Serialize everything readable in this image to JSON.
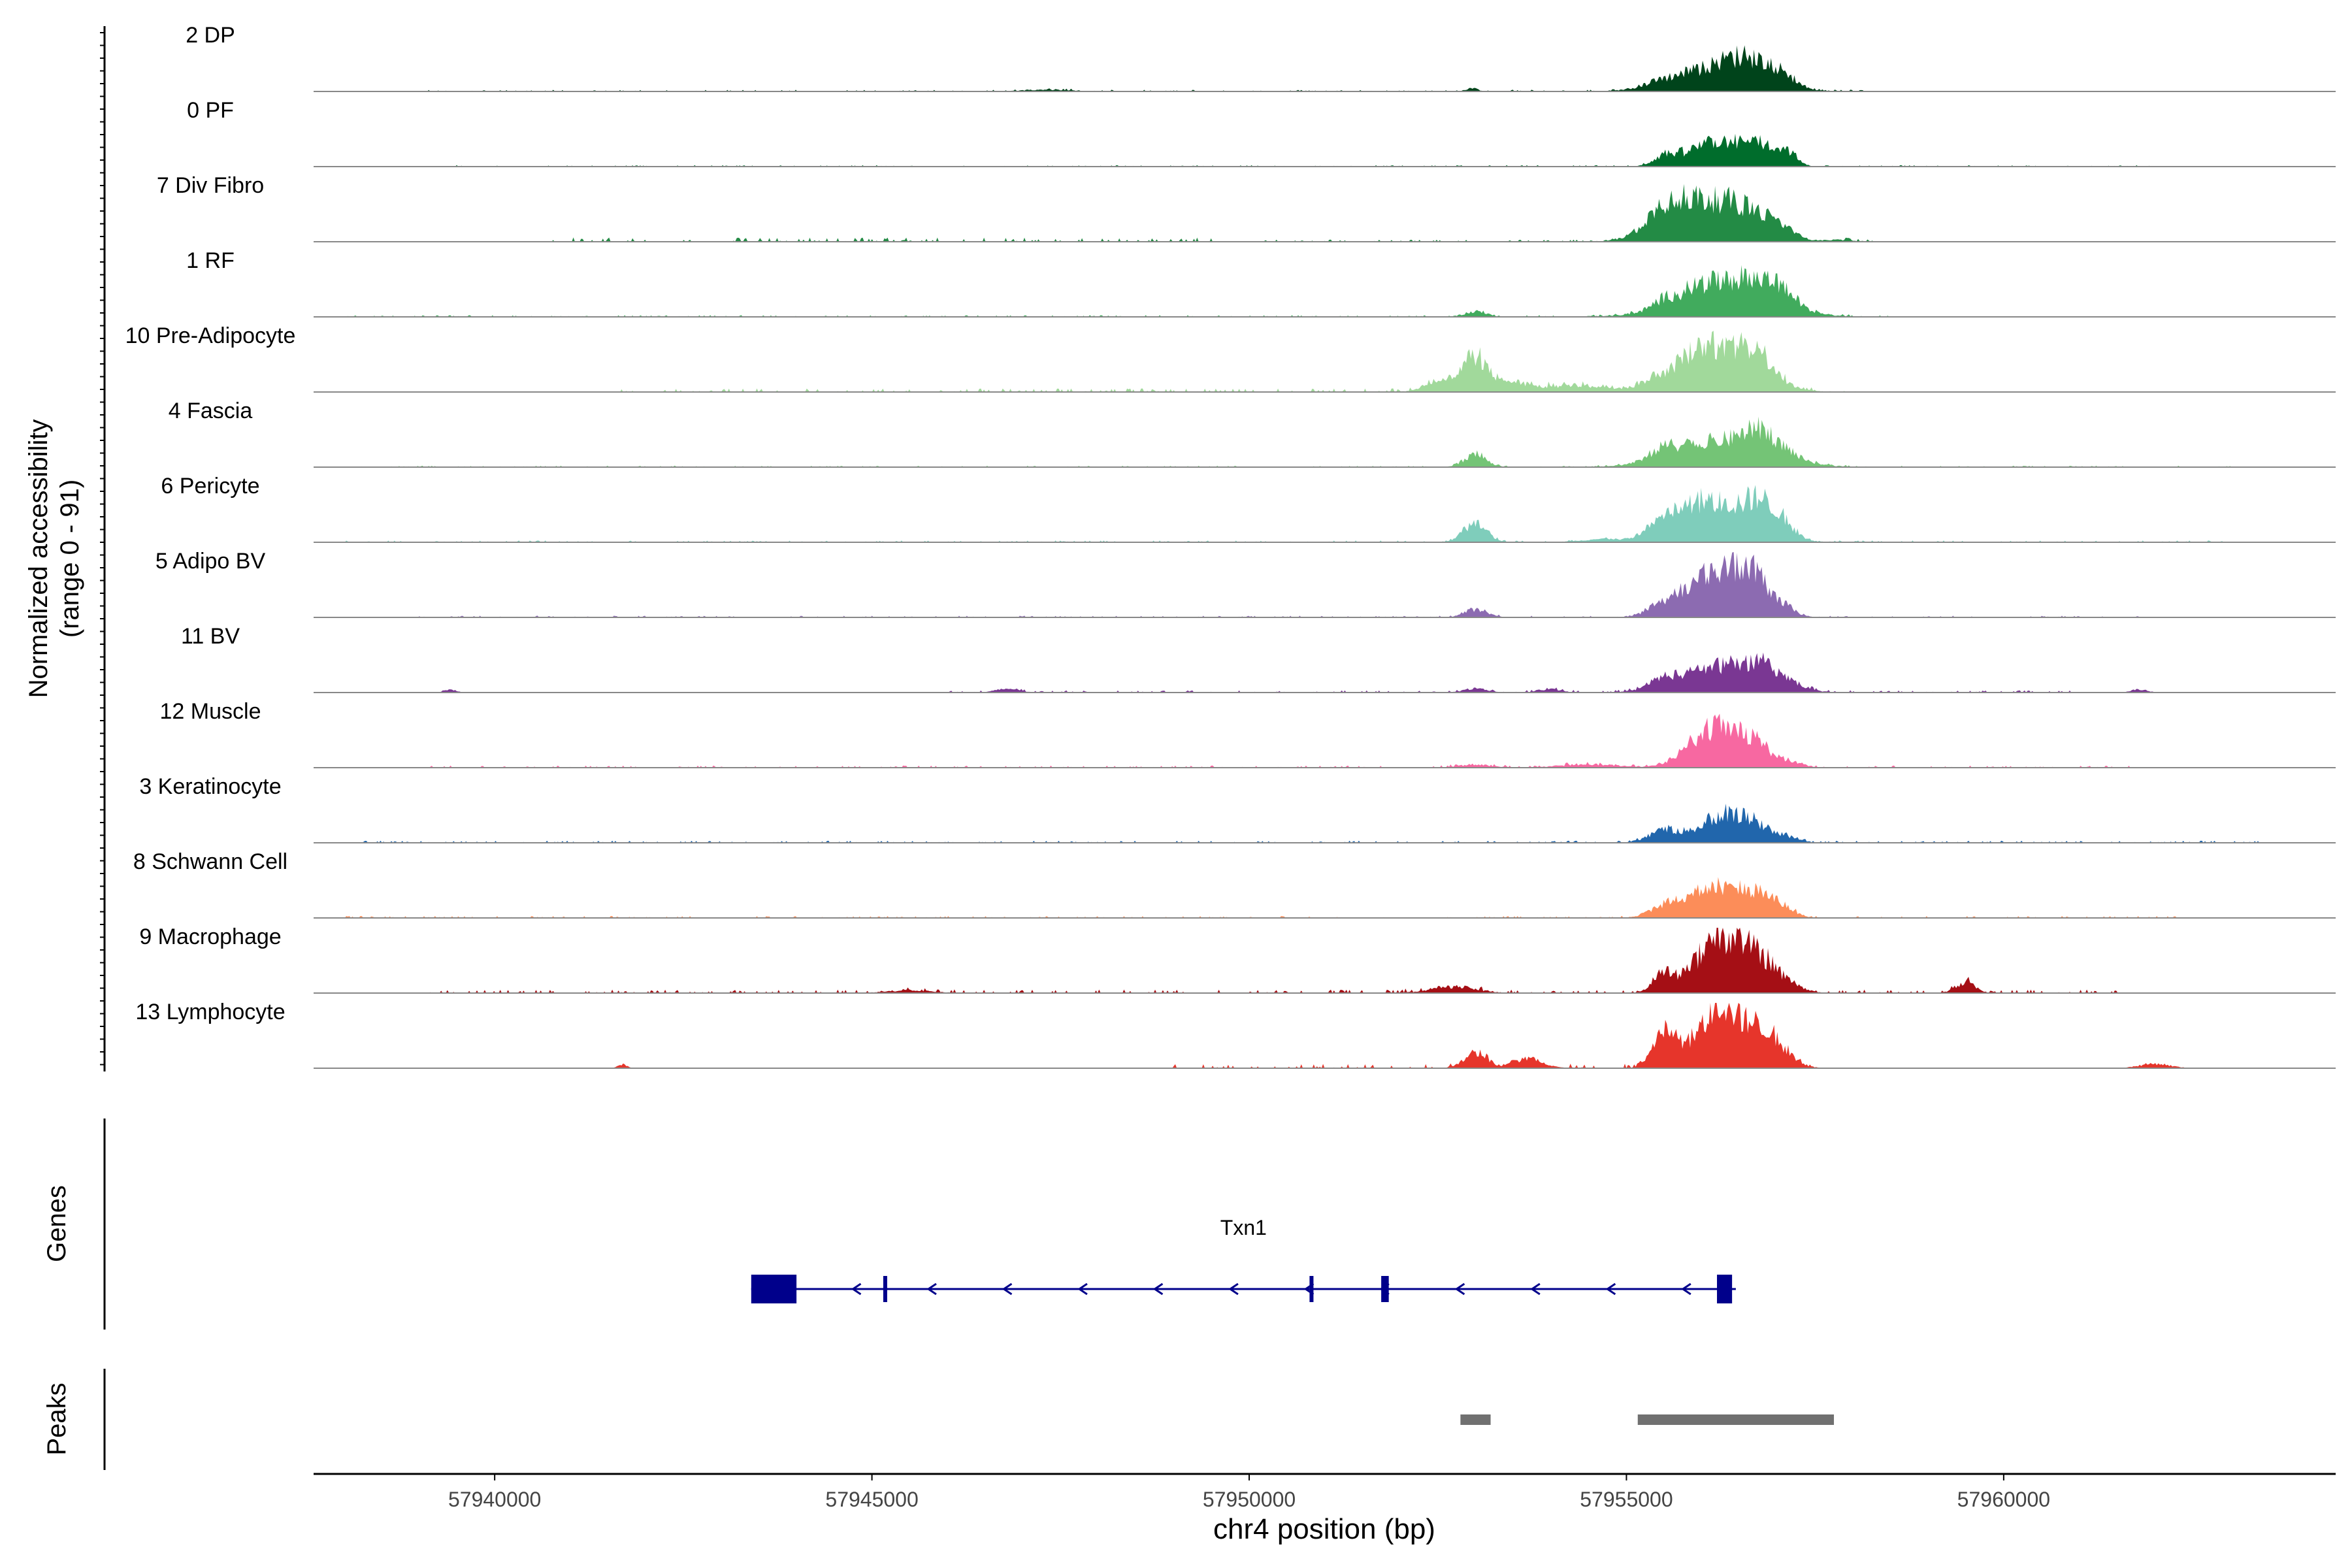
{
  "chart_data": {
    "type": "area",
    "title": "",
    "ylabel_line1": "Normalized accessibility",
    "ylabel_line2": "(range 0 - 91)",
    "ylim": [
      0,
      91
    ],
    "xlabel": "chr4 position (bp)",
    "xlim": [
      57937600,
      57964400
    ],
    "xticks": [
      57940000,
      57945000,
      57950000,
      57955000,
      57960000
    ],
    "xtick_labels": [
      "57940000",
      "57945000",
      "57950000",
      "57955000",
      "57960000"
    ],
    "tracks": [
      {
        "name": "2 DP",
        "color": "#00441b",
        "peaks": [
          [
            57956300,
            38,
            500
          ],
          [
            57956650,
            22,
            300
          ],
          [
            57957050,
            14,
            150
          ],
          [
            57955500,
            10,
            300
          ],
          [
            57952950,
            5,
            80
          ],
          [
            57947300,
            3,
            300
          ]
        ],
        "noise": [
          [
            57939000,
            57958300,
            1.2
          ]
        ]
      },
      {
        "name": "0 PF",
        "color": "#006d2c",
        "peaks": [
          [
            57956300,
            40,
            350
          ],
          [
            57956800,
            22,
            150
          ],
          [
            57957150,
            20,
            120
          ],
          [
            57955500,
            14,
            150
          ],
          [
            57955800,
            8,
            200
          ]
        ],
        "noise": [
          [
            57939000,
            57962000,
            1.0
          ]
        ]
      },
      {
        "name": "7 Div Fibro",
        "color": "#238b45",
        "peaks": [
          [
            57956000,
            60,
            450
          ],
          [
            57955500,
            30,
            250
          ],
          [
            57956650,
            30,
            300
          ],
          [
            57957050,
            12,
            200
          ],
          [
            57957800,
            3,
            200
          ]
        ],
        "noise": [
          [
            57940700,
            57949500,
            3.0
          ],
          [
            57950000,
            57958600,
            1.5
          ]
        ]
      },
      {
        "name": "1 RF",
        "color": "#41ab5d",
        "peaks": [
          [
            57956300,
            42,
            600
          ],
          [
            57956700,
            25,
            300
          ],
          [
            57957100,
            15,
            200
          ],
          [
            57955500,
            12,
            150
          ],
          [
            57955950,
            14,
            200
          ],
          [
            57953000,
            8,
            150
          ]
        ],
        "noise": [
          [
            57938000,
            57958600,
            1.2
          ]
        ]
      },
      {
        "name": "10 Pre-Adipocyte",
        "color": "#a1d99b",
        "peaks": [
          [
            57956300,
            60,
            450
          ],
          [
            57956750,
            30,
            200
          ],
          [
            57955900,
            25,
            250
          ],
          [
            57955400,
            15,
            200
          ],
          [
            57953000,
            55,
            150
          ],
          [
            57952550,
            20,
            200
          ],
          [
            57953450,
            14,
            200
          ],
          [
            57954300,
            10,
            500
          ]
        ],
        "noise": [
          [
            57941500,
            57958200,
            2.5
          ]
        ]
      },
      {
        "name": "4 Fascia",
        "color": "#74c476",
        "peaks": [
          [
            57956300,
            42,
            600
          ],
          [
            57956800,
            28,
            200
          ],
          [
            57955500,
            15,
            200
          ],
          [
            57953000,
            20,
            150
          ],
          [
            57957150,
            6,
            150
          ]
        ],
        "noise": [
          [
            57938000,
            57963000,
            1.0
          ]
        ]
      },
      {
        "name": "6 Pericyte",
        "color": "#7fcdbb",
        "peaks": [
          [
            57956300,
            55,
            450
          ],
          [
            57955500,
            30,
            200
          ],
          [
            57955950,
            20,
            200
          ],
          [
            57956800,
            35,
            200
          ],
          [
            57957100,
            15,
            150
          ],
          [
            57953000,
            32,
            150
          ],
          [
            57954700,
            5,
            300
          ]
        ],
        "noise": [
          [
            57938000,
            57963000,
            1.3
          ]
        ]
      },
      {
        "name": "5 Adipo BV",
        "color": "#8c6bb1",
        "peaks": [
          [
            57956300,
            70,
            350
          ],
          [
            57956700,
            35,
            200
          ],
          [
            57955500,
            22,
            200
          ],
          [
            57955950,
            18,
            200
          ],
          [
            57957100,
            12,
            150
          ],
          [
            57953000,
            12,
            150
          ]
        ],
        "noise": [
          [
            57939000,
            57962000,
            1.2
          ]
        ]
      },
      {
        "name": "11 BV",
        "color": "#7a3793",
        "peaks": [
          [
            57956300,
            42,
            500
          ],
          [
            57956800,
            20,
            200
          ],
          [
            57955500,
            14,
            200
          ],
          [
            57957150,
            8,
            200
          ],
          [
            57953000,
            6,
            150
          ],
          [
            57954000,
            5,
            150
          ],
          [
            57946800,
            6,
            150
          ],
          [
            57939400,
            5,
            80
          ],
          [
            57961800,
            5,
            100
          ]
        ],
        "noise": [
          [
            57946000,
            57961000,
            1.5
          ]
        ]
      },
      {
        "name": "12 Muscle",
        "color": "#f768a1",
        "peaks": [
          [
            57956300,
            55,
            300
          ],
          [
            57955900,
            22,
            250
          ],
          [
            57956750,
            25,
            200
          ],
          [
            57957200,
            8,
            150
          ],
          [
            57953000,
            5,
            200
          ],
          [
            57954500,
            5,
            400
          ]
        ],
        "noise": [
          [
            57939000,
            57962000,
            1.5
          ]
        ]
      },
      {
        "name": "3 Keratinocyte",
        "color": "#2166ac",
        "peaks": [
          [
            57956300,
            45,
            300
          ],
          [
            57955500,
            20,
            200
          ],
          [
            57956750,
            15,
            200
          ],
          [
            57957150,
            8,
            150
          ]
        ],
        "noise": [
          [
            57938000,
            57963500,
            1.5
          ]
        ]
      },
      {
        "name": "8 Schwann Cell",
        "color": "#fc8d59",
        "peaks": [
          [
            57956300,
            45,
            400
          ],
          [
            57955500,
            14,
            200
          ],
          [
            57955900,
            14,
            200
          ],
          [
            57956800,
            18,
            200
          ],
          [
            57957100,
            8,
            150
          ]
        ],
        "noise": [
          [
            57938000,
            57963000,
            1.3
          ]
        ]
      },
      {
        "name": "9 Macrophage",
        "color": "#a50f15",
        "peaks": [
          [
            57956300,
            80,
            250
          ],
          [
            57956750,
            45,
            200
          ],
          [
            57955500,
            30,
            150
          ],
          [
            57955950,
            25,
            200
          ],
          [
            57957100,
            15,
            200
          ],
          [
            57959500,
            18,
            120
          ],
          [
            57952700,
            10,
            300
          ],
          [
            57945500,
            4,
            300
          ]
        ],
        "noise": [
          [
            57939000,
            57961500,
            2.5
          ]
        ]
      },
      {
        "name": "13 Lymphocyte",
        "color": "#e6352b",
        "peaks": [
          [
            57956300,
            88,
            200
          ],
          [
            57955500,
            55,
            150
          ],
          [
            57956750,
            55,
            200
          ],
          [
            57955950,
            40,
            200
          ],
          [
            57957050,
            20,
            200
          ],
          [
            57953000,
            25,
            150
          ],
          [
            57953700,
            15,
            200
          ],
          [
            57941700,
            6,
            60
          ],
          [
            57962000,
            7,
            200
          ]
        ],
        "noise": [
          [
            57949000,
            57957500,
            3.0
          ]
        ]
      }
    ],
    "gene_panel_label": "Genes",
    "gene": {
      "name": "Txn1",
      "start": 57943400,
      "end": 57956450,
      "strand": "-",
      "exons": [
        [
          57943400,
          57944000
        ],
        [
          57945150,
          57945200
        ],
        [
          57950800,
          57950850
        ],
        [
          57951750,
          57951850
        ],
        [
          57956200,
          57956400
        ]
      ],
      "color": "#00008b"
    },
    "peaks_panel_label": "Peaks",
    "peak_regions": [
      [
        57952800,
        57953200
      ],
      [
        57955150,
        57957750
      ]
    ],
    "peak_color": "#707070"
  }
}
